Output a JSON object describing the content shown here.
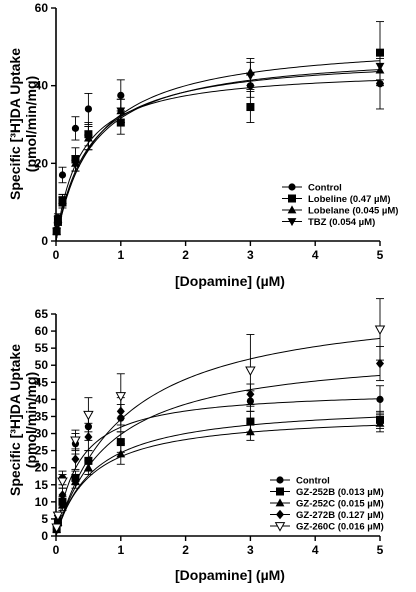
{
  "chart_data": [
    {
      "type": "scatter",
      "xlabel": "[Dopamine] (µM)",
      "ylabel_line1": "Specific [³H]DA Uptake",
      "ylabel_line2": "(pmol/min/mg)",
      "xlim": [
        0,
        5
      ],
      "ylim": [
        0,
        60
      ],
      "xticks": [
        "0",
        "1",
        "2",
        "3",
        "4",
        "5"
      ],
      "yticks": [
        "0",
        "20",
        "40",
        "60"
      ],
      "grid": false,
      "legend_position": "bottom-right",
      "x": [
        0.01,
        0.03,
        0.1,
        0.3,
        0.5,
        1,
        3,
        5
      ],
      "series": [
        {
          "name": "Control",
          "marker": "circle",
          "values": [
            3,
            6,
            17,
            29,
            34,
            37.5,
            40,
            40.5
          ],
          "errors": [
            0,
            1,
            2,
            3,
            4,
            4,
            3,
            6.5
          ],
          "vmax": 44.5,
          "km": 0.38
        },
        {
          "name": "Lobeline (0.47 µM)",
          "marker": "square",
          "values": [
            2.5,
            5,
            10,
            21,
            27.5,
            30.5,
            34.5,
            48.5
          ],
          "errors": [
            0,
            1,
            1.5,
            3,
            3,
            3,
            4,
            8
          ],
          "vmax": 52,
          "km": 0.6
        },
        {
          "name": "Lobelane (0.045 µM)",
          "marker": "triangle-up",
          "values": [
            2.5,
            5.5,
            10.5,
            20,
            26.5,
            33.5,
            43.5,
            44
          ],
          "errors": [
            0,
            1,
            1.5,
            2,
            3,
            3,
            3.5,
            4
          ],
          "vmax": 49,
          "km": 0.55
        },
        {
          "name": "TBZ (0.054 µM)",
          "marker": "triangle-down",
          "values": [
            2.5,
            5.5,
            10.5,
            20,
            26.5,
            33.5,
            42.5,
            45
          ],
          "errors": [
            0,
            1,
            1.5,
            2,
            3,
            3,
            3.5,
            3.5
          ],
          "vmax": 48,
          "km": 0.5
        }
      ]
    },
    {
      "type": "scatter",
      "xlabel": "[Dopamine] (µM)",
      "ylabel_line1": "Specific [³H]DA Uptake",
      "ylabel_line2": "(pmol/min/mg)",
      "xlim": [
        0,
        5
      ],
      "ylim": [
        0,
        65
      ],
      "xticks": [
        "0",
        "1",
        "2",
        "3",
        "4",
        "5"
      ],
      "yticks": [
        "0",
        "5",
        "10",
        "15",
        "20",
        "25",
        "30",
        "35",
        "40",
        "45",
        "50",
        "55",
        "60",
        "65"
      ],
      "grid": false,
      "legend_position": "bottom-right",
      "x": [
        0.01,
        0.03,
        0.1,
        0.3,
        0.5,
        1,
        3,
        5
      ],
      "series": [
        {
          "name": "Control",
          "marker": "circle",
          "values": [
            3,
            6,
            17,
            27,
            32,
            34.5,
            39.5,
            40
          ],
          "errors": [
            0,
            1,
            2,
            3,
            4,
            4,
            3,
            4
          ],
          "vmax": 43,
          "km": 0.35
        },
        {
          "name": "GZ-252B (0.013 µM)",
          "marker": "square",
          "values": [
            2,
            4,
            10,
            17,
            22,
            27.5,
            33.5,
            34
          ],
          "errors": [
            0,
            1,
            1.5,
            2,
            3,
            3,
            3,
            2.5
          ],
          "vmax": 39,
          "km": 0.6
        },
        {
          "name": "GZ-252C (0.015 µM)",
          "marker": "triangle-up",
          "values": [
            2,
            4,
            9,
            16,
            20,
            24,
            30.5,
            33
          ],
          "errors": [
            0,
            1,
            1.5,
            2,
            2,
            3,
            2.5,
            2.5
          ],
          "vmax": 36,
          "km": 0.55
        },
        {
          "name": "GZ-272B (0.127 µM)",
          "marker": "diamond",
          "values": [
            2,
            5,
            12,
            22.5,
            29,
            36.5,
            41.5,
            50.5
          ],
          "errors": [
            0,
            1,
            2,
            3,
            4,
            4,
            3,
            5
          ],
          "vmax": 55,
          "km": 0.85
        },
        {
          "name": "GZ-260C (0.016 µM)",
          "marker": "triangle-down-open",
          "values": [
            2.5,
            6,
            16,
            28,
            35.5,
            41,
            48.5,
            60.5
          ],
          "errors": [
            0,
            1,
            2,
            3,
            5,
            6.5,
            10.5,
            9
          ],
          "vmax": 70,
          "km": 1.05
        }
      ]
    }
  ]
}
